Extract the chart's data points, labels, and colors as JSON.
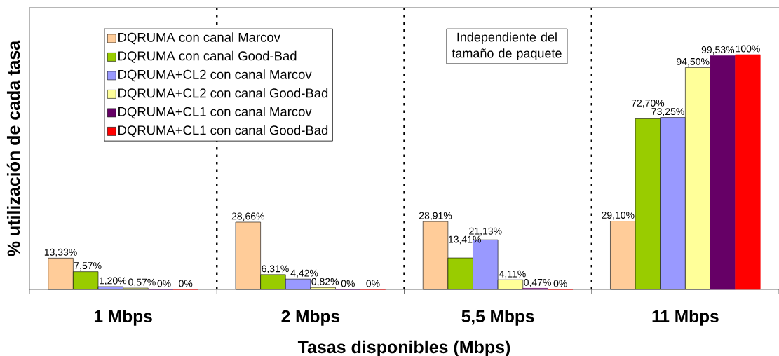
{
  "chart_data": {
    "type": "bar",
    "xlabel": "Tasas disponibles (Mbps)",
    "ylabel": "% utilización de cada tasa",
    "categories": [
      "1 Mbps",
      "2 Mbps",
      "5,5 Mbps",
      "11 Mbps"
    ],
    "series": [
      {
        "name": "DQRUMA con canal Marcov",
        "color": "#ffcc99",
        "values": [
          13.33,
          28.66,
          28.91,
          29.1
        ],
        "value_labels": [
          "13,33%",
          "28,66%",
          "28,91%",
          "29,10%"
        ]
      },
      {
        "name": "DQRUMA con canal Good-Bad",
        "color": "#99cc00",
        "values": [
          7.57,
          6.31,
          13.41,
          72.7
        ],
        "value_labels": [
          "7,57%",
          "6,31%",
          "13,41%",
          "72,70%"
        ]
      },
      {
        "name": "DQRUMA+CL2 con canal Marcov",
        "color": "#9999ff",
        "values": [
          1.2,
          4.42,
          21.13,
          73.25
        ],
        "value_labels": [
          "1,20%",
          "4,42%",
          "21,13%",
          "73,25%"
        ]
      },
      {
        "name": "DQRUMA+CL2 con canal Good-Bad",
        "color": "#ffff99",
        "values": [
          0.57,
          0.82,
          4.11,
          94.5
        ],
        "value_labels": [
          "0,57%",
          "0,82%",
          "4,11%",
          "94,50%"
        ]
      },
      {
        "name": "DQRUMA+CL1 con canal Marcov",
        "color": "#660066",
        "values": [
          0,
          0,
          0.47,
          99.53
        ],
        "value_labels": [
          "0%",
          "0%",
          "0,47%",
          "99,53%"
        ]
      },
      {
        "name": "DQRUMA+CL1 con canal Good-Bad",
        "color": "#ff0000",
        "values": [
          0,
          0,
          0,
          100
        ],
        "value_labels": [
          "0%",
          "0%",
          "0%",
          "100%"
        ]
      }
    ],
    "ylim": [
      0,
      120
    ],
    "tick_labels": "x",
    "legend": "top left",
    "annotations": [
      "Independiente del tamaño de paquete"
    ]
  }
}
